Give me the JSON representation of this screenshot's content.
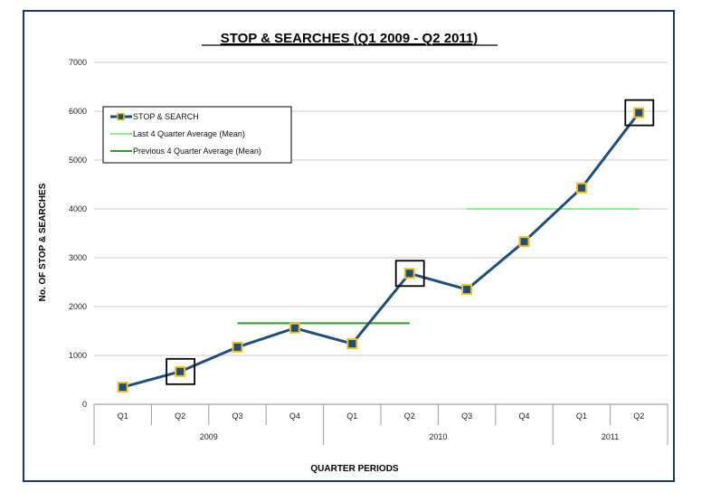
{
  "chart_data": {
    "type": "line",
    "title": "STOP & SEARCHES  (Q1 2009 - Q2 2011)",
    "xlabel": "QUARTER PERIODS",
    "ylabel": "No. OF STOP & SEARCHES",
    "ylim": [
      0,
      7000
    ],
    "yticks": [
      "0",
      "1000",
      "2000",
      "3000",
      "4000",
      "5000",
      "6000",
      "7000"
    ],
    "categories": [
      "Q1",
      "Q2",
      "Q3",
      "Q4",
      "Q1",
      "Q2",
      "Q3",
      "Q4",
      "Q1",
      "Q2"
    ],
    "year_groups": [
      {
        "label": "2009",
        "span": 4
      },
      {
        "label": "2010",
        "span": 4
      },
      {
        "label": "2011",
        "span": 2
      }
    ],
    "grid": true,
    "legend_position": "top-left",
    "series": [
      {
        "name": "STOP & SEARCH",
        "color": "#1f4e79",
        "marker_color": "#f0c020",
        "values": [
          350,
          670,
          1170,
          1560,
          1240,
          2680,
          2350,
          3330,
          4430,
          5970
        ]
      }
    ],
    "reference_lines": [
      {
        "name": "Last 4 Quarter Average (Mean)",
        "color": "#90ee90",
        "value": 4000,
        "from_index": 6,
        "to_index": 9
      },
      {
        "name": "Previous 4 Quarter Average (Mean)",
        "color": "#2e9a2e",
        "value": 1660,
        "from_index": 2,
        "to_index": 5
      }
    ],
    "highlighted_points": [
      1,
      5,
      9
    ]
  }
}
